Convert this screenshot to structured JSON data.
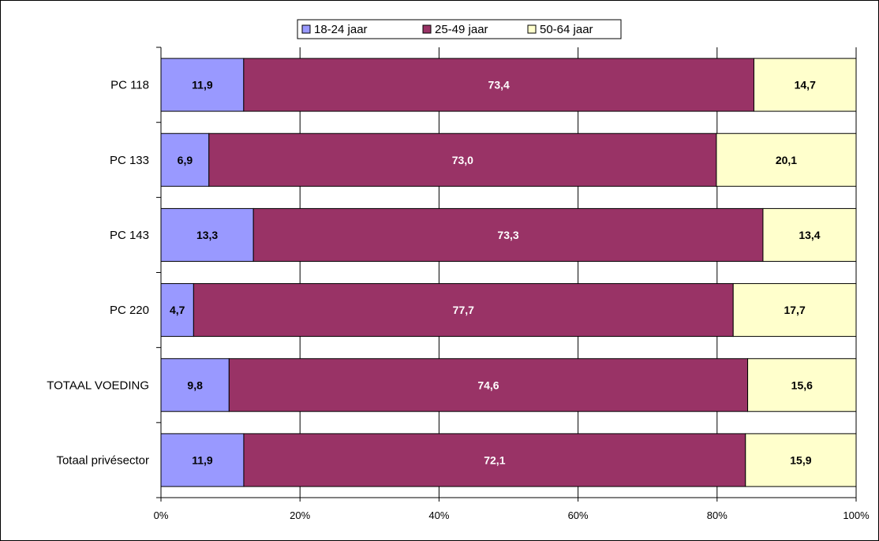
{
  "chart_data": {
    "type": "bar",
    "orientation": "horizontal",
    "stacked": "percent",
    "categories": [
      "PC 118",
      "PC 133",
      "PC 143",
      "PC 220",
      "TOTAAL VOEDING",
      "Totaal privésector"
    ],
    "series": [
      {
        "name": "18-24 jaar",
        "color": "#9999ff",
        "values": [
          11.9,
          6.9,
          13.3,
          4.7,
          9.8,
          11.9
        ],
        "labels": [
          "11,9",
          "6,9",
          "13,3",
          "4,7",
          "9,8",
          "11,9"
        ],
        "label_color": "#000000"
      },
      {
        "name": "25-49 jaar",
        "color": "#993366",
        "values": [
          73.4,
          73.0,
          73.3,
          77.7,
          74.6,
          72.1
        ],
        "labels": [
          "73,4",
          "73,0",
          "73,3",
          "77,7",
          "74,6",
          "72,1"
        ],
        "label_color": "#ffffff"
      },
      {
        "name": "50-64 jaar",
        "color": "#ffffcc",
        "values": [
          14.7,
          20.1,
          13.4,
          17.7,
          15.6,
          15.9
        ],
        "labels": [
          "14,7",
          "20,1",
          "13,4",
          "17,7",
          "15,6",
          "15,9"
        ],
        "label_color": "#000000"
      }
    ],
    "xlim": [
      0,
      100
    ],
    "x_ticks": [
      "0%",
      "20%",
      "40%",
      "60%",
      "80%",
      "100%"
    ],
    "grid": "vertical",
    "legend": "top-center"
  }
}
